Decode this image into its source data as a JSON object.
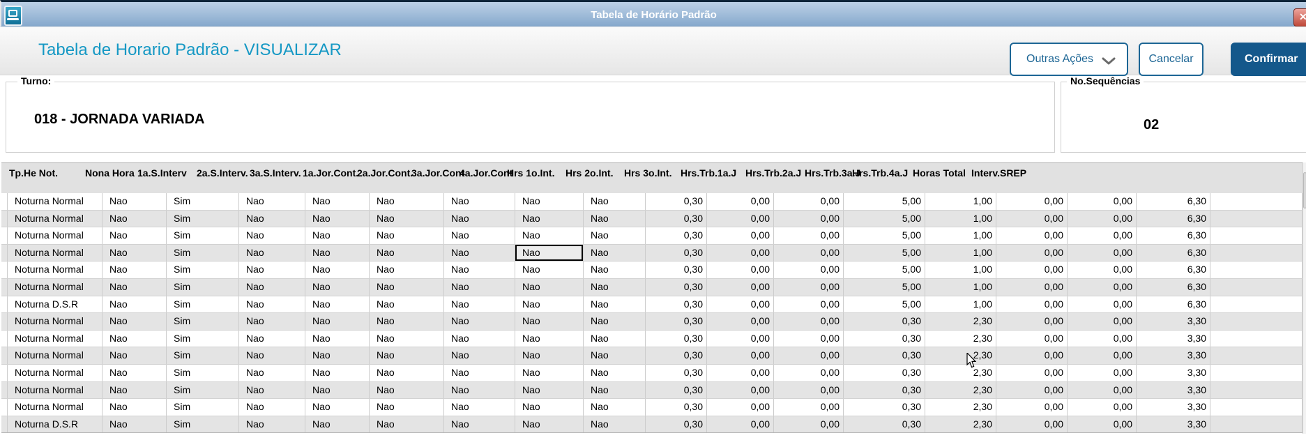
{
  "window": {
    "title": "Tabela de Horário Padrão",
    "close_label": "✕"
  },
  "header": {
    "page_title": "Tabela de Horario Padrão - VISUALIZAR",
    "other_actions_label": "Outras Ações",
    "cancel_label": "Cancelar",
    "confirm_label": "Confirmar"
  },
  "form": {
    "turno": {
      "label": "Turno:",
      "value": "018 - JORNADA VARIADA"
    },
    "sequencias": {
      "label": "No.Sequências",
      "value": "02"
    }
  },
  "grid": {
    "columns": [
      "Tp.He Not.",
      "Nona Hora",
      "1a.S.Interv",
      "2a.S.Interv.",
      "3a.S.Interv.",
      "1a.Jor.Cont.",
      "2a.Jor.Cont.",
      "3a.Jor.Cont",
      "4a.Jor.Cont",
      "Hrs 1o.Int.",
      "Hrs 2o.Int.",
      "Hrs 3o.Int.",
      "Hrs.Trb.1a.J",
      "Hrs.Trb.2a.J",
      "Hrs.Trb.3a.J",
      "Hrs.Trb.4a.J",
      "Horas Total",
      "Interv.SREP"
    ],
    "rows": [
      [
        "Noturna Normal",
        "Nao",
        "Sim",
        "Nao",
        "Nao",
        "Nao",
        "Nao",
        "Nao",
        "Nao",
        "0,30",
        "0,00",
        "0,00",
        "5,00",
        "1,00",
        "0,00",
        "0,00",
        "6,30",
        ""
      ],
      [
        "Noturna Normal",
        "Nao",
        "Sim",
        "Nao",
        "Nao",
        "Nao",
        "Nao",
        "Nao",
        "Nao",
        "0,30",
        "0,00",
        "0,00",
        "5,00",
        "1,00",
        "0,00",
        "0,00",
        "6,30",
        ""
      ],
      [
        "Noturna Normal",
        "Nao",
        "Sim",
        "Nao",
        "Nao",
        "Nao",
        "Nao",
        "Nao",
        "Nao",
        "0,30",
        "0,00",
        "0,00",
        "5,00",
        "1,00",
        "0,00",
        "0,00",
        "6,30",
        ""
      ],
      [
        "Noturna Normal",
        "Nao",
        "Sim",
        "Nao",
        "Nao",
        "Nao",
        "Nao",
        "Nao",
        "Nao",
        "0,30",
        "0,00",
        "0,00",
        "5,00",
        "1,00",
        "0,00",
        "0,00",
        "6,30",
        ""
      ],
      [
        "Noturna Normal",
        "Nao",
        "Sim",
        "Nao",
        "Nao",
        "Nao",
        "Nao",
        "Nao",
        "Nao",
        "0,30",
        "0,00",
        "0,00",
        "5,00",
        "1,00",
        "0,00",
        "0,00",
        "6,30",
        ""
      ],
      [
        "Noturna Normal",
        "Nao",
        "Sim",
        "Nao",
        "Nao",
        "Nao",
        "Nao",
        "Nao",
        "Nao",
        "0,30",
        "0,00",
        "0,00",
        "5,00",
        "1,00",
        "0,00",
        "0,00",
        "6,30",
        ""
      ],
      [
        "Noturna D.S.R",
        "Nao",
        "Sim",
        "Nao",
        "Nao",
        "Nao",
        "Nao",
        "Nao",
        "Nao",
        "0,30",
        "0,00",
        "0,00",
        "5,00",
        "1,00",
        "0,00",
        "0,00",
        "6,30",
        ""
      ],
      [
        "Noturna Normal",
        "Nao",
        "Sim",
        "Nao",
        "Nao",
        "Nao",
        "Nao",
        "Nao",
        "Nao",
        "0,30",
        "0,00",
        "0,00",
        "0,30",
        "2,30",
        "0,00",
        "0,00",
        "3,30",
        ""
      ],
      [
        "Noturna Normal",
        "Nao",
        "Sim",
        "Nao",
        "Nao",
        "Nao",
        "Nao",
        "Nao",
        "Nao",
        "0,30",
        "0,00",
        "0,00",
        "0,30",
        "2,30",
        "0,00",
        "0,00",
        "3,30",
        ""
      ],
      [
        "Noturna Normal",
        "Nao",
        "Sim",
        "Nao",
        "Nao",
        "Nao",
        "Nao",
        "Nao",
        "Nao",
        "0,30",
        "0,00",
        "0,00",
        "0,30",
        "2,30",
        "0,00",
        "0,00",
        "3,30",
        ""
      ],
      [
        "Noturna Normal",
        "Nao",
        "Sim",
        "Nao",
        "Nao",
        "Nao",
        "Nao",
        "Nao",
        "Nao",
        "0,30",
        "0,00",
        "0,00",
        "0,30",
        "2,30",
        "0,00",
        "0,00",
        "3,30",
        ""
      ],
      [
        "Noturna Normal",
        "Nao",
        "Sim",
        "Nao",
        "Nao",
        "Nao",
        "Nao",
        "Nao",
        "Nao",
        "0,30",
        "0,00",
        "0,00",
        "0,30",
        "2,30",
        "0,00",
        "0,00",
        "3,30",
        ""
      ],
      [
        "Noturna Normal",
        "Nao",
        "Sim",
        "Nao",
        "Nao",
        "Nao",
        "Nao",
        "Nao",
        "Nao",
        "0,30",
        "0,00",
        "0,00",
        "0,30",
        "2,30",
        "0,00",
        "0,00",
        "3,30",
        ""
      ],
      [
        "Noturna D.S.R",
        "Nao",
        "Sim",
        "Nao",
        "Nao",
        "Nao",
        "Nao",
        "Nao",
        "Nao",
        "0,30",
        "0,00",
        "0,00",
        "0,30",
        "2,30",
        "0,00",
        "0,00",
        "3,30",
        ""
      ]
    ],
    "selected_cell": {
      "row": 3,
      "col": 7
    }
  }
}
